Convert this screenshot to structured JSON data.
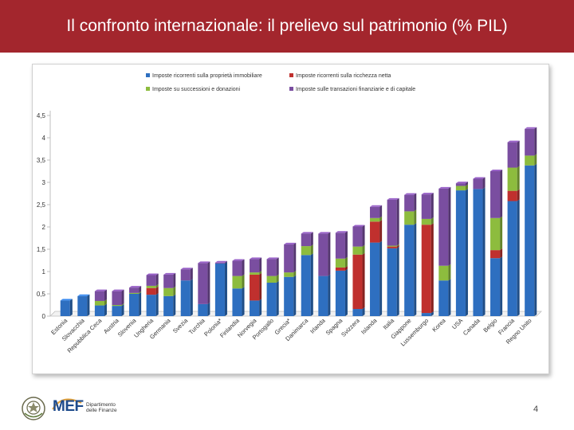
{
  "header": {
    "title": "Il confronto internazionale: il prelievo sul patrimonio (% PIL)"
  },
  "footer": {
    "logo_text": "MEF",
    "department_line1": "Dipartimento",
    "department_line2": "delle Finanze",
    "page_number": "4"
  },
  "chart_data": {
    "type": "bar",
    "stacked": true,
    "title": "",
    "xlabel": "",
    "ylabel": "",
    "ylim": [
      0,
      4.5
    ],
    "yticks": [
      0,
      0.5,
      1,
      1.5,
      2,
      2.5,
      3,
      3.5,
      4,
      4.5
    ],
    "ytick_labels": [
      "0",
      "0,5",
      "1",
      "1,5",
      "2",
      "2,5",
      "3",
      "3,5",
      "4",
      "4,5"
    ],
    "grid": false,
    "legend_position": "top",
    "categories": [
      "Estonia",
      "Slovacchia",
      "Repubblica Ceca",
      "Austria",
      "Slovenia",
      "Ungheria",
      "Germania",
      "Svezia",
      "Turchia",
      "Polonia*",
      "Finlandia",
      "Norvegia",
      "Portogallo",
      "Grecia*",
      "Danimarca",
      "Irlanda",
      "Spagna",
      "Svizzera",
      "Islanda",
      "Italia",
      "Giappone",
      "Lussemburgo",
      "Korea",
      "USA",
      "Canada",
      "Belgio",
      "Francia",
      "Regno Unito"
    ],
    "series": [
      {
        "name": "Imposte ricorrenti sulla proprietà immobiliare",
        "color": "#2e6fc0",
        "values": [
          0.35,
          0.45,
          0.24,
          0.23,
          0.5,
          0.48,
          0.45,
          0.8,
          0.27,
          1.18,
          0.62,
          0.35,
          0.75,
          0.88,
          1.37,
          0.9,
          1.02,
          0.16,
          1.65,
          1.52,
          2.05,
          0.07,
          0.8,
          2.82,
          2.85,
          1.3,
          2.58,
          3.38
        ]
      },
      {
        "name": "Imposte ricorrenti sulla ricchezza netta",
        "color": "#c0302e",
        "values": [
          0,
          0,
          0,
          0,
          0,
          0.15,
          0,
          0,
          0,
          0,
          0,
          0.58,
          0,
          0,
          0,
          0,
          0.07,
          1.22,
          0.47,
          0.04,
          0,
          1.98,
          0,
          0,
          0,
          0.18,
          0.23,
          0
        ]
      },
      {
        "name": "Imposte su successioni e donazioni",
        "color": "#8dbc3e",
        "values": [
          0,
          0,
          0.1,
          0.02,
          0.02,
          0.05,
          0.18,
          0,
          0,
          0,
          0.28,
          0.05,
          0.15,
          0.1,
          0.2,
          0,
          0.2,
          0.18,
          0.08,
          0.02,
          0.3,
          0.13,
          0.33,
          0.1,
          0,
          0.72,
          0.52,
          0.22
        ]
      },
      {
        "name": "Imposte sulle transazioni finanziarie e di capitale",
        "color": "#7a4ea0",
        "values": [
          0,
          0,
          0.22,
          0.31,
          0.12,
          0.24,
          0.3,
          0.25,
          0.92,
          0.02,
          0.34,
          0.3,
          0.38,
          0.63,
          0.28,
          0.95,
          0.58,
          0.45,
          0.25,
          1.03,
          0.37,
          0.55,
          1.73,
          0.06,
          0.23,
          1.05,
          0.57,
          0.6
        ]
      }
    ]
  }
}
